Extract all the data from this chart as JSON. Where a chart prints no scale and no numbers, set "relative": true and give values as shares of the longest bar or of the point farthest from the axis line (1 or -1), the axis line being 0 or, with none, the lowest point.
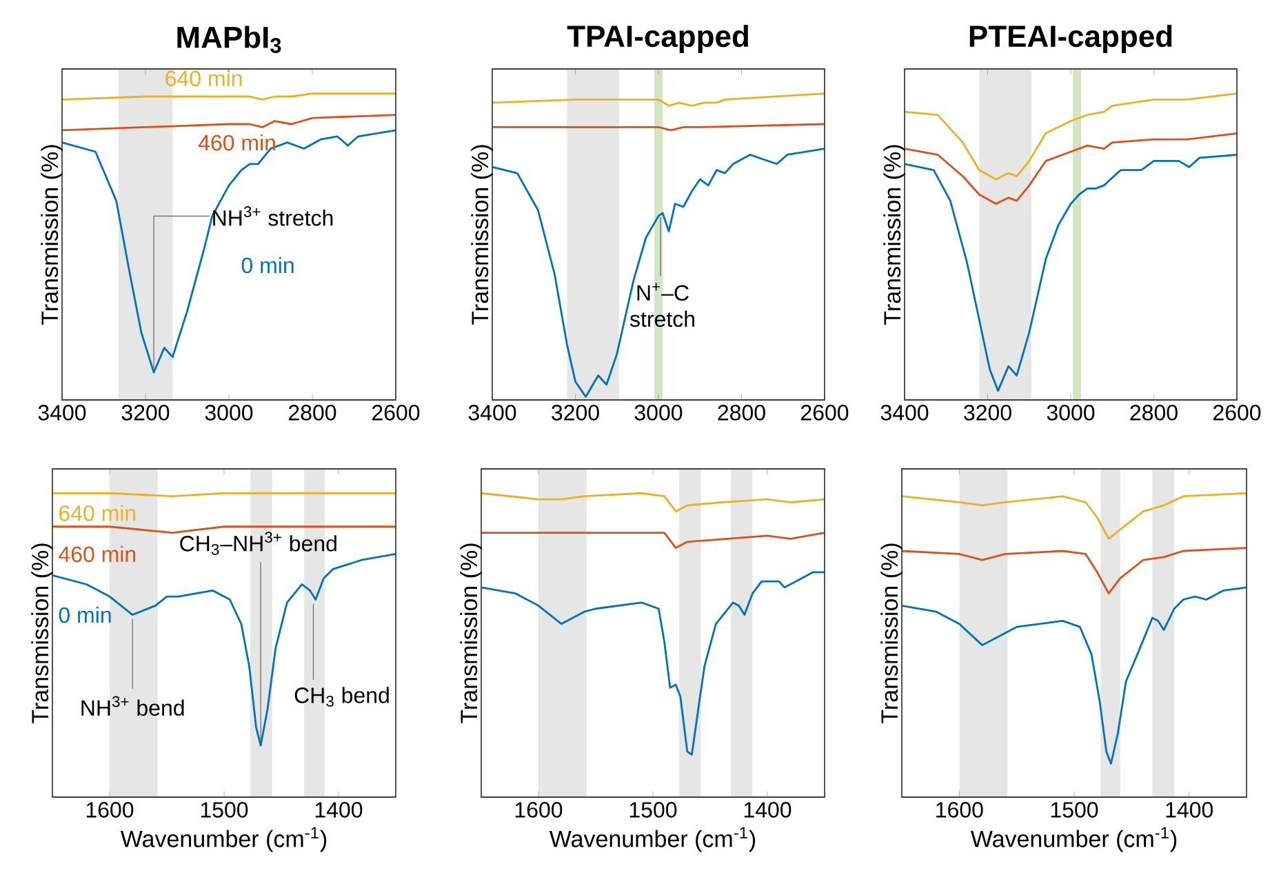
{
  "chart_data": [
    {
      "type": "line",
      "title": "**MAPbI$_{3}$**",
      "ylabel": "Transmission (%)",
      "relative": true,
      "xlim": [
        3400,
        2600
      ],
      "xticks": [
        3400,
        3200,
        3000,
        2800,
        2600
      ],
      "bands": [
        {
          "axis": "x",
          "from": 3265,
          "to": 3135,
          "color": "#e6e6e6"
        }
      ],
      "annotations": [
        {
          "text": "NH$^{3+}$ stretch",
          "x": 3180,
          "y": 0.09
        }
      ],
      "series": [
        {
          "name": "0 min",
          "color": "#0072bd",
          "x": [
            3400,
            3320,
            3270,
            3240,
            3210,
            3180,
            3155,
            3135,
            3100,
            3060,
            3040,
            3000,
            2970,
            2950,
            2930,
            2900,
            2860,
            2820,
            2780,
            2740,
            2715,
            2690,
            2600
          ],
          "values": [
            0.84,
            0.81,
            0.65,
            0.43,
            0.22,
            0.09,
            0.17,
            0.14,
            0.29,
            0.49,
            0.6,
            0.7,
            0.75,
            0.77,
            0.77,
            0.82,
            0.84,
            0.82,
            0.85,
            0.86,
            0.83,
            0.86,
            0.88
          ]
        },
        {
          "name": "460 min",
          "color": "#d95319",
          "x": [
            3400,
            3200,
            3000,
            2950,
            2920,
            2890,
            2850,
            2800,
            2600
          ],
          "values": [
            0.88,
            0.89,
            0.9,
            0.9,
            0.89,
            0.91,
            0.9,
            0.92,
            0.93
          ]
        },
        {
          "name": "640 min",
          "color": "#edb120",
          "x": [
            3400,
            3200,
            3000,
            2950,
            2920,
            2890,
            2850,
            2800,
            2600
          ],
          "values": [
            0.98,
            0.99,
            0.99,
            0.99,
            0.98,
            0.99,
            0.99,
            1.0,
            1.0
          ]
        }
      ]
    },
    {
      "type": "line",
      "title": "**TPAI-capped**",
      "ylabel": "Transmission (%)",
      "relative": true,
      "xlim": [
        3400,
        2600
      ],
      "xticks": [
        3400,
        3200,
        3000,
        2800,
        2600
      ],
      "bands": [
        {
          "axis": "x",
          "from": 3220,
          "to": 3095,
          "color": "#e6e6e6"
        },
        {
          "axis": "x",
          "from": 3010,
          "to": 2990,
          "color": "#d3e6c3"
        }
      ],
      "annotations": [
        {
          "text": "N$^{+}$–C stretch",
          "x": 2995,
          "y": 0.61
        }
      ],
      "series": [
        {
          "color": "#0072bd",
          "x": [
            3400,
            3340,
            3290,
            3250,
            3220,
            3200,
            3175,
            3145,
            3125,
            3100,
            3060,
            3030,
            3000,
            2990,
            2975,
            2960,
            2940,
            2920,
            2900,
            2880,
            2860,
            2840,
            2820,
            2780,
            2715,
            2690,
            2600
          ],
          "values": [
            0.76,
            0.74,
            0.62,
            0.41,
            0.18,
            0.06,
            0.01,
            0.08,
            0.05,
            0.15,
            0.39,
            0.53,
            0.6,
            0.61,
            0.55,
            0.64,
            0.63,
            0.68,
            0.72,
            0.7,
            0.75,
            0.74,
            0.77,
            0.8,
            0.77,
            0.8,
            0.82
          ]
        },
        {
          "color": "#d95319",
          "x": [
            3400,
            3200,
            3000,
            2970,
            2940,
            2900,
            2600
          ],
          "values": [
            0.89,
            0.89,
            0.89,
            0.88,
            0.89,
            0.89,
            0.9
          ]
        },
        {
          "color": "#edb120",
          "x": [
            3400,
            3200,
            3000,
            2975,
            2950,
            2920,
            2890,
            2860,
            2840,
            2600
          ],
          "values": [
            0.97,
            0.98,
            0.98,
            0.96,
            0.97,
            0.96,
            0.97,
            0.97,
            0.98,
            1.0
          ]
        }
      ]
    },
    {
      "type": "line",
      "title": "**PTEAI-capped**",
      "ylabel": "Transmission (%)",
      "relative": true,
      "xlim": [
        3400,
        2600
      ],
      "xticks": [
        3400,
        3200,
        3000,
        2800,
        2600
      ],
      "bands": [
        {
          "axis": "x",
          "from": 3220,
          "to": 3095,
          "color": "#e6e6e6"
        },
        {
          "axis": "x",
          "from": 2995,
          "to": 2975,
          "color": "#d3e6c3"
        }
      ],
      "series": [
        {
          "color": "#0072bd",
          "x": [
            3400,
            3330,
            3290,
            3250,
            3220,
            3195,
            3175,
            3150,
            3130,
            3100,
            3060,
            3030,
            3000,
            2980,
            2960,
            2940,
            2920,
            2880,
            2830,
            2800,
            2740,
            2715,
            2690,
            2600
          ],
          "values": [
            0.77,
            0.75,
            0.65,
            0.45,
            0.26,
            0.1,
            0.03,
            0.11,
            0.08,
            0.22,
            0.46,
            0.57,
            0.64,
            0.67,
            0.69,
            0.69,
            0.7,
            0.75,
            0.75,
            0.78,
            0.78,
            0.76,
            0.79,
            0.8
          ]
        },
        {
          "color": "#d95319",
          "x": [
            3400,
            3320,
            3260,
            3220,
            3180,
            3150,
            3130,
            3100,
            3060,
            3000,
            2960,
            2920,
            2900,
            2800,
            2720,
            2600
          ],
          "values": [
            0.82,
            0.8,
            0.73,
            0.67,
            0.64,
            0.66,
            0.65,
            0.7,
            0.78,
            0.81,
            0.83,
            0.82,
            0.84,
            0.85,
            0.85,
            0.87
          ]
        },
        {
          "color": "#edb120",
          "x": [
            3400,
            3320,
            3260,
            3220,
            3180,
            3150,
            3130,
            3100,
            3060,
            3000,
            2960,
            2920,
            2900,
            2800,
            2720,
            2600
          ],
          "values": [
            0.94,
            0.93,
            0.84,
            0.75,
            0.72,
            0.74,
            0.73,
            0.78,
            0.87,
            0.91,
            0.93,
            0.94,
            0.96,
            0.98,
            0.98,
            1.0
          ]
        }
      ]
    },
    {
      "type": "line",
      "xlabel": "Wavenumber (cm$^{-1}$)",
      "ylabel": "Transmission (%)",
      "relative": true,
      "xlim": [
        1650,
        1350
      ],
      "xticks": [
        1600,
        1500,
        1400
      ],
      "bands": [
        {
          "axis": "x",
          "from": 1600,
          "to": 1558,
          "color": "#e6e6e6"
        },
        {
          "axis": "x",
          "from": 1477,
          "to": 1458,
          "color": "#e6e6e6"
        },
        {
          "axis": "x",
          "from": 1430,
          "to": 1412,
          "color": "#e6e6e6"
        }
      ],
      "annotations": [
        {
          "text": "NH$^{3+}$ bend",
          "x": 1580,
          "y": 0.6
        },
        {
          "text": "CH$_{3}$–NH$^{3+}$ bend",
          "x": 1468,
          "y": 0.17
        },
        {
          "text": "CH$_{3}$ bend",
          "x": 1422,
          "y": 0.65
        }
      ],
      "series": [
        {
          "name": "0 min",
          "color": "#0072bd",
          "x": [
            1650,
            1620,
            1600,
            1580,
            1560,
            1550,
            1540,
            1510,
            1495,
            1485,
            1478,
            1472,
            1468,
            1462,
            1455,
            1445,
            1432,
            1425,
            1420,
            1413,
            1405,
            1380,
            1350
          ],
          "values": [
            0.73,
            0.7,
            0.66,
            0.6,
            0.63,
            0.66,
            0.66,
            0.68,
            0.65,
            0.57,
            0.43,
            0.23,
            0.17,
            0.29,
            0.49,
            0.64,
            0.7,
            0.68,
            0.65,
            0.72,
            0.75,
            0.78,
            0.8
          ]
        },
        {
          "name": "460 min",
          "color": "#d95319",
          "x": [
            1650,
            1600,
            1545,
            1500,
            1450,
            1350
          ],
          "values": [
            0.89,
            0.89,
            0.87,
            0.89,
            0.89,
            0.89
          ]
        },
        {
          "name": "640 min",
          "color": "#edb120",
          "x": [
            1650,
            1600,
            1545,
            1500,
            1450,
            1350
          ],
          "values": [
            1.0,
            1.0,
            0.99,
            1.0,
            1.0,
            1.0
          ]
        }
      ]
    },
    {
      "type": "line",
      "xlabel": "Wavenumber (cm$^{-1}$)",
      "ylabel": "Transmission (%)",
      "relative": true,
      "xlim": [
        1650,
        1350
      ],
      "xticks": [
        1600,
        1500,
        1400
      ],
      "bands": [
        {
          "axis": "x",
          "from": 1600,
          "to": 1558,
          "color": "#e6e6e6"
        },
        {
          "axis": "x",
          "from": 1477,
          "to": 1458,
          "color": "#e6e6e6"
        },
        {
          "axis": "x",
          "from": 1432,
          "to": 1413,
          "color": "#e6e6e6"
        }
      ],
      "series": [
        {
          "color": "#0072bd",
          "x": [
            1650,
            1620,
            1600,
            1580,
            1560,
            1550,
            1510,
            1495,
            1490,
            1485,
            1480,
            1476,
            1470,
            1466,
            1460,
            1455,
            1445,
            1430,
            1425,
            1420,
            1413,
            1405,
            1390,
            1385,
            1375,
            1360,
            1350
          ],
          "values": [
            0.69,
            0.67,
            0.63,
            0.57,
            0.61,
            0.62,
            0.64,
            0.62,
            0.51,
            0.36,
            0.37,
            0.33,
            0.15,
            0.14,
            0.3,
            0.43,
            0.57,
            0.64,
            0.63,
            0.6,
            0.67,
            0.71,
            0.71,
            0.69,
            0.71,
            0.74,
            0.74
          ]
        },
        {
          "color": "#d95319",
          "x": [
            1650,
            1550,
            1490,
            1480,
            1470,
            1400,
            1380,
            1350
          ],
          "values": [
            0.87,
            0.87,
            0.87,
            0.82,
            0.84,
            0.86,
            0.85,
            0.87
          ]
        },
        {
          "color": "#edb120",
          "x": [
            1650,
            1600,
            1580,
            1560,
            1510,
            1490,
            1480,
            1470,
            1440,
            1400,
            1380,
            1350
          ],
          "values": [
            1.0,
            0.98,
            0.98,
            0.99,
            1.0,
            0.99,
            0.94,
            0.96,
            0.97,
            0.98,
            0.97,
            0.98
          ]
        }
      ]
    },
    {
      "type": "line",
      "xlabel": "Wavenumber (cm$^{-1}$)",
      "ylabel": "Transmission (%)",
      "relative": true,
      "xlim": [
        1650,
        1350
      ],
      "xticks": [
        1600,
        1500,
        1400
      ],
      "bands": [
        {
          "axis": "x",
          "from": 1600,
          "to": 1558,
          "color": "#e6e6e6"
        },
        {
          "axis": "x",
          "from": 1477,
          "to": 1460,
          "color": "#e6e6e6"
        },
        {
          "axis": "x",
          "from": 1432,
          "to": 1413,
          "color": "#e6e6e6"
        }
      ],
      "series": [
        {
          "color": "#0072bd",
          "x": [
            1650,
            1620,
            1600,
            1580,
            1560,
            1550,
            1530,
            1510,
            1495,
            1485,
            1478,
            1472,
            1468,
            1462,
            1455,
            1445,
            1432,
            1427,
            1422,
            1413,
            1405,
            1395,
            1385,
            1370,
            1350
          ],
          "values": [
            0.63,
            0.61,
            0.57,
            0.5,
            0.54,
            0.56,
            0.57,
            0.58,
            0.56,
            0.47,
            0.32,
            0.15,
            0.11,
            0.21,
            0.38,
            0.47,
            0.59,
            0.58,
            0.55,
            0.62,
            0.65,
            0.66,
            0.65,
            0.68,
            0.69
          ]
        },
        {
          "color": "#d95319",
          "x": [
            1650,
            1600,
            1580,
            1560,
            1510,
            1490,
            1480,
            1470,
            1460,
            1440,
            1422,
            1405,
            1350
          ],
          "values": [
            0.81,
            0.8,
            0.78,
            0.8,
            0.81,
            0.8,
            0.74,
            0.67,
            0.72,
            0.78,
            0.79,
            0.81,
            0.82
          ]
        },
        {
          "color": "#edb120",
          "x": [
            1650,
            1600,
            1580,
            1560,
            1510,
            1490,
            1480,
            1470,
            1460,
            1440,
            1422,
            1405,
            1350
          ],
          "values": [
            0.99,
            0.97,
            0.96,
            0.97,
            0.99,
            0.97,
            0.92,
            0.85,
            0.88,
            0.94,
            0.96,
            0.99,
            1.0
          ]
        }
      ]
    }
  ]
}
